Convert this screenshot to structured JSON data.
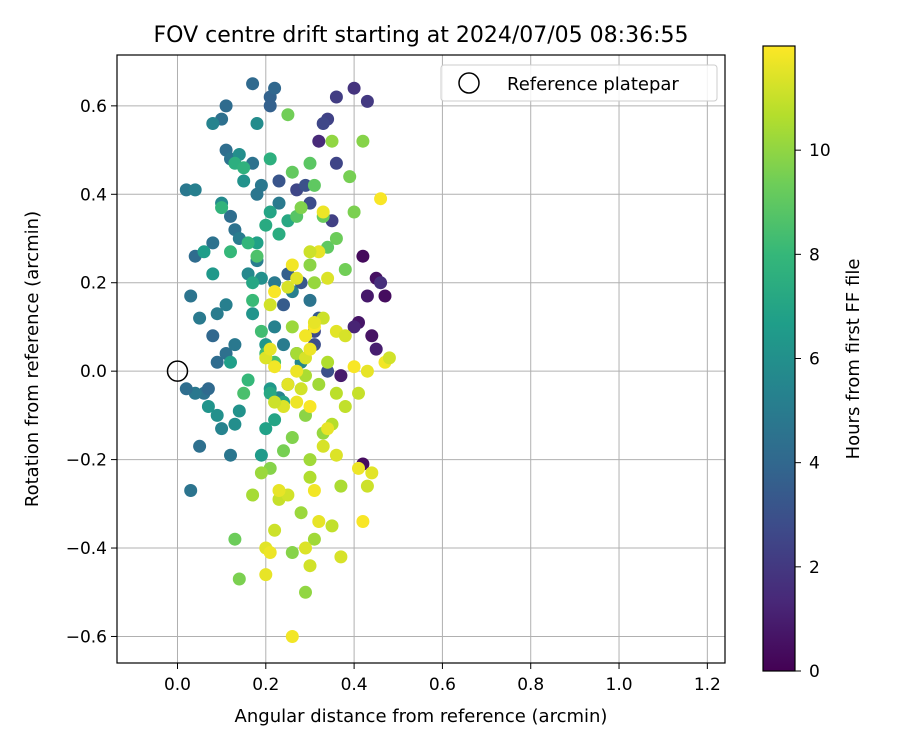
{
  "chart_data": {
    "type": "scatter",
    "title": "FOV centre drift starting at 2024/07/05 08:36:55",
    "xlabel": "Angular distance from reference (arcmin)",
    "ylabel": "Rotation from reference (arcmin)",
    "xlim": [
      -0.137,
      1.24
    ],
    "ylim": [
      -0.66,
      0.715
    ],
    "xticks": [
      0.0,
      0.2,
      0.4,
      0.6,
      0.8,
      1.0,
      1.2
    ],
    "xtick_labels": [
      "0.0",
      "0.2",
      "0.4",
      "0.6",
      "0.8",
      "1.0",
      "1.2"
    ],
    "yticks": [
      -0.6,
      -0.4,
      -0.2,
      0.0,
      0.2,
      0.4,
      0.6
    ],
    "ytick_labels": [
      "−0.6",
      "−0.4",
      "−0.2",
      "0.0",
      "0.2",
      "0.4",
      "0.6"
    ],
    "grid": true,
    "legend": {
      "position": "top-right",
      "label": "Reference platepar"
    },
    "reference_point": {
      "x": 0.0,
      "y": 0.0
    },
    "colorbar": {
      "label": "Hours from first FF file",
      "min": 0,
      "max": 12,
      "ticks": [
        0,
        2,
        4,
        6,
        8,
        10
      ],
      "tick_labels": [
        "0",
        "2",
        "4",
        "6",
        "8",
        "10"
      ],
      "colormap": "viridis"
    },
    "series": [
      {
        "points": [
          [
            0.42,
            0.26,
            0.3
          ],
          [
            0.45,
            0.21,
            0.5
          ],
          [
            0.47,
            0.17,
            0.4
          ],
          [
            0.43,
            0.17,
            0.8
          ],
          [
            0.44,
            0.08,
            0.6
          ],
          [
            0.45,
            0.05,
            1.0
          ],
          [
            0.41,
            0.11,
            0.7
          ],
          [
            0.4,
            0.1,
            1.2
          ],
          [
            0.42,
            -0.21,
            0.4
          ],
          [
            0.37,
            -0.01,
            0.9
          ],
          [
            0.4,
            0.64,
            1.8
          ],
          [
            0.43,
            0.61,
            2.0
          ],
          [
            0.36,
            0.62,
            2.2
          ],
          [
            0.34,
            0.57,
            2.4
          ],
          [
            0.33,
            0.56,
            2.6
          ],
          [
            0.46,
            0.2,
            1.6
          ],
          [
            0.36,
            0.47,
            2.5
          ],
          [
            0.3,
            0.38,
            2.8
          ],
          [
            0.32,
            0.52,
            1.4
          ],
          [
            0.35,
            0.34,
            2.3
          ],
          [
            0.27,
            0.41,
            2.6
          ],
          [
            0.29,
            0.42,
            3.0
          ],
          [
            0.23,
            0.43,
            3.2
          ],
          [
            0.32,
            0.12,
            3.4
          ],
          [
            0.34,
            0.0,
            3.0
          ],
          [
            0.31,
            0.09,
            2.7
          ],
          [
            0.28,
            0.2,
            3.3
          ],
          [
            0.25,
            0.22,
            3.6
          ],
          [
            0.24,
            0.15,
            3.5
          ],
          [
            0.31,
            0.06,
            2.9
          ],
          [
            0.21,
            0.62,
            3.8
          ],
          [
            0.22,
            0.64,
            4.0
          ],
          [
            0.21,
            0.6,
            3.7
          ],
          [
            0.17,
            0.65,
            4.1
          ],
          [
            0.11,
            0.6,
            4.2
          ],
          [
            0.1,
            0.57,
            4.4
          ],
          [
            0.11,
            0.5,
            4.3
          ],
          [
            0.12,
            0.48,
            4.6
          ],
          [
            0.17,
            0.47,
            4.5
          ],
          [
            0.19,
            0.42,
            4.8
          ],
          [
            0.23,
            0.38,
            4.9
          ],
          [
            0.18,
            0.4,
            4.7
          ],
          [
            0.12,
            0.35,
            4.3
          ],
          [
            0.13,
            0.32,
            4.5
          ],
          [
            0.14,
            0.3,
            5.0
          ],
          [
            0.18,
            0.25,
            5.1
          ],
          [
            0.22,
            0.2,
            4.9
          ],
          [
            0.26,
            0.18,
            5.2
          ],
          [
            0.3,
            0.16,
            4.6
          ],
          [
            0.22,
            0.1,
            5.3
          ],
          [
            0.24,
            0.06,
            5.0
          ],
          [
            0.27,
            0.04,
            4.7
          ],
          [
            0.28,
            0.02,
            5.5
          ],
          [
            0.25,
            -0.03,
            5.2
          ],
          [
            0.23,
            -0.06,
            5.4
          ],
          [
            0.08,
            0.08,
            4.0
          ],
          [
            0.09,
            0.02,
            4.2
          ],
          [
            0.11,
            0.04,
            4.4
          ],
          [
            0.13,
            0.06,
            4.8
          ],
          [
            0.06,
            -0.05,
            4.5
          ],
          [
            0.07,
            -0.04,
            4.1
          ],
          [
            0.04,
            -0.05,
            4.8
          ],
          [
            0.02,
            -0.04,
            4.3
          ],
          [
            0.03,
            0.17,
            4.6
          ],
          [
            0.05,
            0.12,
            4.9
          ],
          [
            0.09,
            0.13,
            5.0
          ],
          [
            0.11,
            0.15,
            5.2
          ],
          [
            0.1,
            -0.13,
            5.4
          ],
          [
            0.12,
            -0.19,
            4.7
          ],
          [
            0.05,
            -0.17,
            4.4
          ],
          [
            0.04,
            0.26,
            4.2
          ],
          [
            0.08,
            0.29,
            4.5
          ],
          [
            0.03,
            -0.27,
            4.6
          ],
          [
            0.02,
            0.41,
            4.8
          ],
          [
            0.04,
            0.41,
            5.2
          ],
          [
            0.08,
            0.56,
            5.4
          ],
          [
            0.1,
            0.38,
            5.7
          ],
          [
            0.14,
            0.49,
            5.9
          ],
          [
            0.15,
            0.43,
            6.1
          ],
          [
            0.18,
            0.56,
            5.8
          ],
          [
            0.16,
            0.22,
            5.6
          ],
          [
            0.19,
            0.21,
            6.0
          ],
          [
            0.17,
            0.13,
            6.2
          ],
          [
            0.2,
            0.06,
            6.3
          ],
          [
            0.21,
            -0.04,
            6.4
          ],
          [
            0.14,
            -0.09,
            6.1
          ],
          [
            0.13,
            -0.12,
            5.9
          ],
          [
            0.09,
            -0.1,
            6.0
          ],
          [
            0.07,
            -0.08,
            6.2
          ],
          [
            0.08,
            0.22,
            6.4
          ],
          [
            0.06,
            0.27,
            6.6
          ],
          [
            0.12,
            0.02,
            6.7
          ],
          [
            0.19,
            -0.19,
            6.5
          ],
          [
            0.2,
            -0.13,
            6.8
          ],
          [
            0.22,
            -0.11,
            7.0
          ],
          [
            0.24,
            -0.07,
            6.9
          ],
          [
            0.21,
            -0.05,
            7.2
          ],
          [
            0.17,
            0.2,
            7.1
          ],
          [
            0.18,
            0.29,
            6.8
          ],
          [
            0.2,
            0.33,
            7.3
          ],
          [
            0.21,
            0.36,
            7.0
          ],
          [
            0.23,
            0.31,
            7.4
          ],
          [
            0.25,
            0.34,
            7.2
          ],
          [
            0.13,
            0.47,
            7.5
          ],
          [
            0.15,
            0.46,
            7.7
          ],
          [
            0.21,
            0.48,
            7.6
          ],
          [
            0.1,
            0.37,
            7.8
          ],
          [
            0.12,
            0.27,
            8.0
          ],
          [
            0.16,
            0.29,
            7.9
          ],
          [
            0.17,
            0.16,
            8.1
          ],
          [
            0.19,
            0.09,
            8.3
          ],
          [
            0.2,
            0.04,
            8.2
          ],
          [
            0.22,
            0.02,
            8.4
          ],
          [
            0.15,
            -0.05,
            8.5
          ],
          [
            0.16,
            -0.02,
            8.0
          ],
          [
            0.18,
            0.26,
            8.6
          ],
          [
            0.27,
            0.35,
            8.8
          ],
          [
            0.3,
            0.47,
            8.9
          ],
          [
            0.31,
            0.42,
            9.0
          ],
          [
            0.26,
            0.45,
            9.1
          ],
          [
            0.33,
            0.35,
            9.2
          ],
          [
            0.34,
            0.28,
            9.0
          ],
          [
            0.36,
            0.3,
            9.3
          ],
          [
            0.38,
            0.23,
            9.4
          ],
          [
            0.4,
            0.36,
            9.6
          ],
          [
            0.39,
            0.44,
            9.5
          ],
          [
            0.42,
            0.52,
            9.8
          ],
          [
            0.35,
            0.52,
            10.0
          ],
          [
            0.25,
            0.58,
            9.4
          ],
          [
            0.28,
            0.37,
            9.7
          ],
          [
            0.3,
            0.24,
            9.9
          ],
          [
            0.31,
            0.2,
            10.1
          ],
          [
            0.26,
            0.1,
            10.2
          ],
          [
            0.27,
            0.04,
            10.4
          ],
          [
            0.29,
            -0.01,
            10.5
          ],
          [
            0.32,
            -0.03,
            10.3
          ],
          [
            0.34,
            0.02,
            10.6
          ],
          [
            0.36,
            -0.05,
            10.8
          ],
          [
            0.38,
            -0.08,
            10.9
          ],
          [
            0.41,
            -0.05,
            11.0
          ],
          [
            0.35,
            -0.12,
            10.7
          ],
          [
            0.33,
            -0.14,
            10.1
          ],
          [
            0.3,
            -0.2,
            10.3
          ],
          [
            0.29,
            -0.1,
            9.9
          ],
          [
            0.26,
            -0.15,
            9.7
          ],
          [
            0.24,
            -0.18,
            9.5
          ],
          [
            0.21,
            -0.22,
            9.8
          ],
          [
            0.19,
            -0.23,
            10.2
          ],
          [
            0.17,
            -0.28,
            10.4
          ],
          [
            0.13,
            -0.38,
            9.3
          ],
          [
            0.14,
            -0.47,
            9.6
          ],
          [
            0.26,
            -0.41,
            9.8
          ],
          [
            0.29,
            -0.5,
            10.0
          ],
          [
            0.31,
            -0.38,
            10.3
          ],
          [
            0.37,
            -0.26,
            10.5
          ],
          [
            0.28,
            -0.32,
            10.2
          ],
          [
            0.3,
            -0.24,
            10.6
          ],
          [
            0.23,
            -0.29,
            11.0
          ],
          [
            0.25,
            -0.28,
            11.2
          ],
          [
            0.2,
            -0.4,
            11.5
          ],
          [
            0.21,
            -0.41,
            11.7
          ],
          [
            0.2,
            -0.46,
            11.6
          ],
          [
            0.26,
            -0.6,
            11.8
          ],
          [
            0.29,
            -0.4,
            11.4
          ],
          [
            0.3,
            -0.44,
            11.2
          ],
          [
            0.32,
            -0.34,
            11.6
          ],
          [
            0.37,
            -0.42,
            11.3
          ],
          [
            0.42,
            -0.34,
            11.9
          ],
          [
            0.35,
            -0.35,
            10.9
          ],
          [
            0.43,
            -0.26,
            11.1
          ],
          [
            0.41,
            -0.22,
            11.7
          ],
          [
            0.44,
            -0.23,
            11.5
          ],
          [
            0.33,
            -0.17,
            11.3
          ],
          [
            0.34,
            -0.13,
            11.6
          ],
          [
            0.36,
            -0.19,
            11.4
          ],
          [
            0.31,
            -0.27,
            11.8
          ],
          [
            0.23,
            -0.27,
            11.6
          ],
          [
            0.22,
            -0.36,
            11.1
          ],
          [
            0.27,
            -0.07,
            11.7
          ],
          [
            0.3,
            -0.08,
            11.9
          ],
          [
            0.28,
            -0.04,
            11.2
          ],
          [
            0.25,
            -0.03,
            11.5
          ],
          [
            0.22,
            0.01,
            11.8
          ],
          [
            0.2,
            0.03,
            11.4
          ],
          [
            0.21,
            0.05,
            11.6
          ],
          [
            0.29,
            0.03,
            11.3
          ],
          [
            0.3,
            0.05,
            11.7
          ],
          [
            0.31,
            0.1,
            11.9
          ],
          [
            0.33,
            0.12,
            11.1
          ],
          [
            0.36,
            0.09,
            11.5
          ],
          [
            0.38,
            0.08,
            11.3
          ],
          [
            0.4,
            0.01,
            11.9
          ],
          [
            0.43,
            0.0,
            11.6
          ],
          [
            0.47,
            0.02,
            11.8
          ],
          [
            0.48,
            0.03,
            11.2
          ],
          [
            0.46,
            0.39,
            11.9
          ],
          [
            0.33,
            0.36,
            11.7
          ],
          [
            0.34,
            0.21,
            11.4
          ],
          [
            0.32,
            0.27,
            11.6
          ],
          [
            0.3,
            0.27,
            11.1
          ],
          [
            0.26,
            0.24,
            11.8
          ],
          [
            0.25,
            0.19,
            11.3
          ],
          [
            0.27,
            0.21,
            11.5
          ],
          [
            0.22,
            0.18,
            11.9
          ],
          [
            0.21,
            0.15,
            11.2
          ],
          [
            0.31,
            0.11,
            11.6
          ],
          [
            0.29,
            0.08,
            11.8
          ],
          [
            0.24,
            -0.08,
            11.4
          ],
          [
            0.22,
            -0.07,
            11.1
          ],
          [
            0.27,
            0.0,
            11.7
          ]
        ]
      }
    ]
  }
}
